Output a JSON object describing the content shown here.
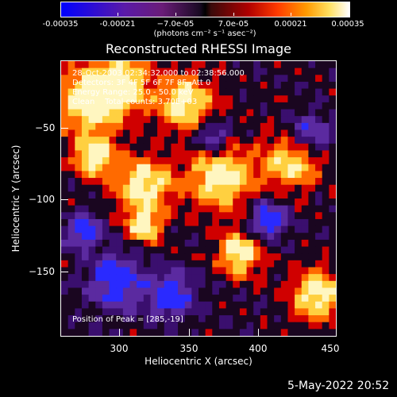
{
  "colorbar": {
    "tick_labels": [
      "-0.00035",
      "-0.00021",
      "−7.0e-05",
      "7.0e-05",
      "0.00021",
      "0.00035"
    ],
    "units": "(photons cm⁻² s⁻¹ asec⁻²)"
  },
  "title": "Reconstructed RHESSI Image",
  "overlay": {
    "line1": "28-Oct-2003 02:34:32.000 to 02:38:56.000",
    "line2": "Detectors: 3F 4F 5F 6F 7F 8F, Att 0",
    "line3": "Energy Range: 25.0 - 50.0 keV",
    "line4": "Clean    Total counts: 3.70E+03",
    "peak": "Position of Peak = [285,-19]"
  },
  "axes": {
    "xlabel": "Heliocentric X (arcsec)",
    "ylabel": "Heliocentric Y (arcsec)",
    "xticks": [
      "300",
      "350",
      "400",
      "450"
    ],
    "yticks": [
      "−50",
      "−100",
      "−150"
    ],
    "xlim": [
      262,
      450
    ],
    "ylim": [
      -195,
      -10
    ]
  },
  "footer": {
    "date": "5-May-2022 20:52"
  },
  "colors": {
    "blue": "#2a2aff",
    "violet": "#5b2aa0",
    "purple": "#3a0f6e",
    "dark": "#1a0620",
    "red": "#d00000",
    "orange": "#ff6a00",
    "yellow": "#ffd040",
    "white": "#fff6c0"
  }
}
